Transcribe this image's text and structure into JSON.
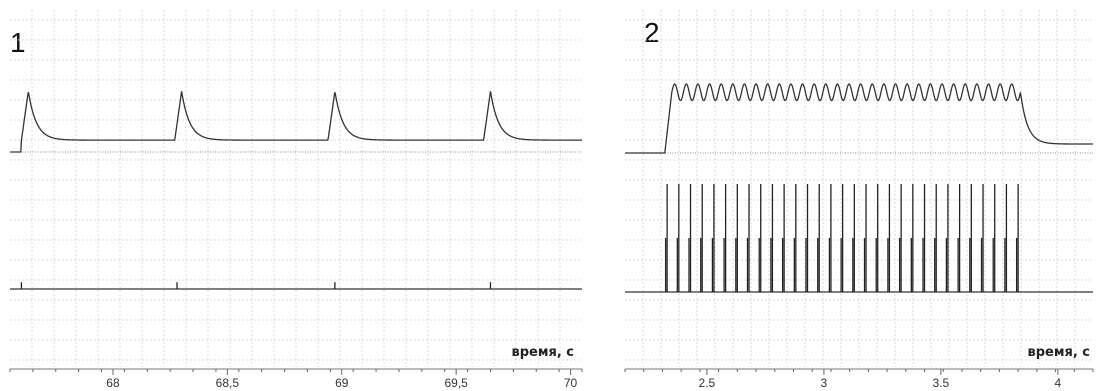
{
  "chart_data": [
    {
      "type": "line",
      "panel_label": "1",
      "title": "",
      "xlabel": "время, с",
      "ylabel": "",
      "xlim": [
        67.55,
        70.05
      ],
      "grid": true,
      "x_ticks": [
        68,
        68.5,
        69,
        69.5,
        70
      ],
      "x_tick_labels": [
        "68",
        "68,5",
        "69",
        "69,5",
        "70"
      ],
      "series": [
        {
          "trace": "upper",
          "peaks_x": [
            67.63,
            68.3,
            68.97,
            69.65
          ],
          "peaks_level": 0.92,
          "resting_level": 0.18
        },
        {
          "trace": "lower",
          "spikes_x": [
            67.6,
            68.28,
            68.97,
            69.65
          ],
          "spike_level": 0.22,
          "resting_level": 0.0
        }
      ]
    },
    {
      "type": "line",
      "panel_label": "2",
      "title": "",
      "xlabel": "время, с",
      "ylabel": "",
      "xlim": [
        2.15,
        4.15
      ],
      "grid": true,
      "x_ticks": [
        2.5,
        3,
        3.5,
        4
      ],
      "x_tick_labels": [
        "2.5",
        "3",
        "3.5",
        "4"
      ],
      "series": [
        {
          "trace": "upper",
          "plateau_start": 2.35,
          "plateau_end": 3.84,
          "plateau_level": 0.88,
          "oscillations": 30,
          "resting_level": 0.13
        },
        {
          "trace": "lower",
          "burst_start": 2.33,
          "burst_end": 3.83,
          "spike_count": 31,
          "spike_level": 1.0,
          "resting_level": 0.0
        }
      ]
    }
  ]
}
